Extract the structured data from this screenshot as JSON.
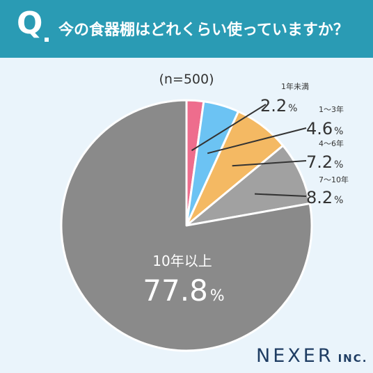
{
  "header": {
    "q_letter": "Q",
    "question": "今の食器棚はどれくらい使っていますか？",
    "bg_color": "#2a9bb4"
  },
  "chart_data": {
    "type": "pie",
    "sample_size": "(n=500)",
    "start_angle_deg": 0,
    "direction": "clockwise",
    "slices": [
      {
        "category": "1年未満",
        "value": 2.2,
        "label": "2.2",
        "unit": "%",
        "color": "#ee6d8d"
      },
      {
        "category": "1〜3年",
        "value": 4.6,
        "label": "4.6",
        "unit": "%",
        "color": "#6cc3f3"
      },
      {
        "category": "4〜6年",
        "value": 7.2,
        "label": "7.2",
        "unit": "%",
        "color": "#f4b963"
      },
      {
        "category": "7〜10年",
        "value": 8.2,
        "label": "8.2",
        "unit": "%",
        "color": "#a1a1a1"
      },
      {
        "category": "10年以上",
        "value": 77.8,
        "label": "77.8",
        "unit": "%",
        "color": "#8a8a8a"
      }
    ]
  },
  "logo": {
    "main": "NEXER",
    "sub": "INC.",
    "color": "#1f3d63"
  }
}
